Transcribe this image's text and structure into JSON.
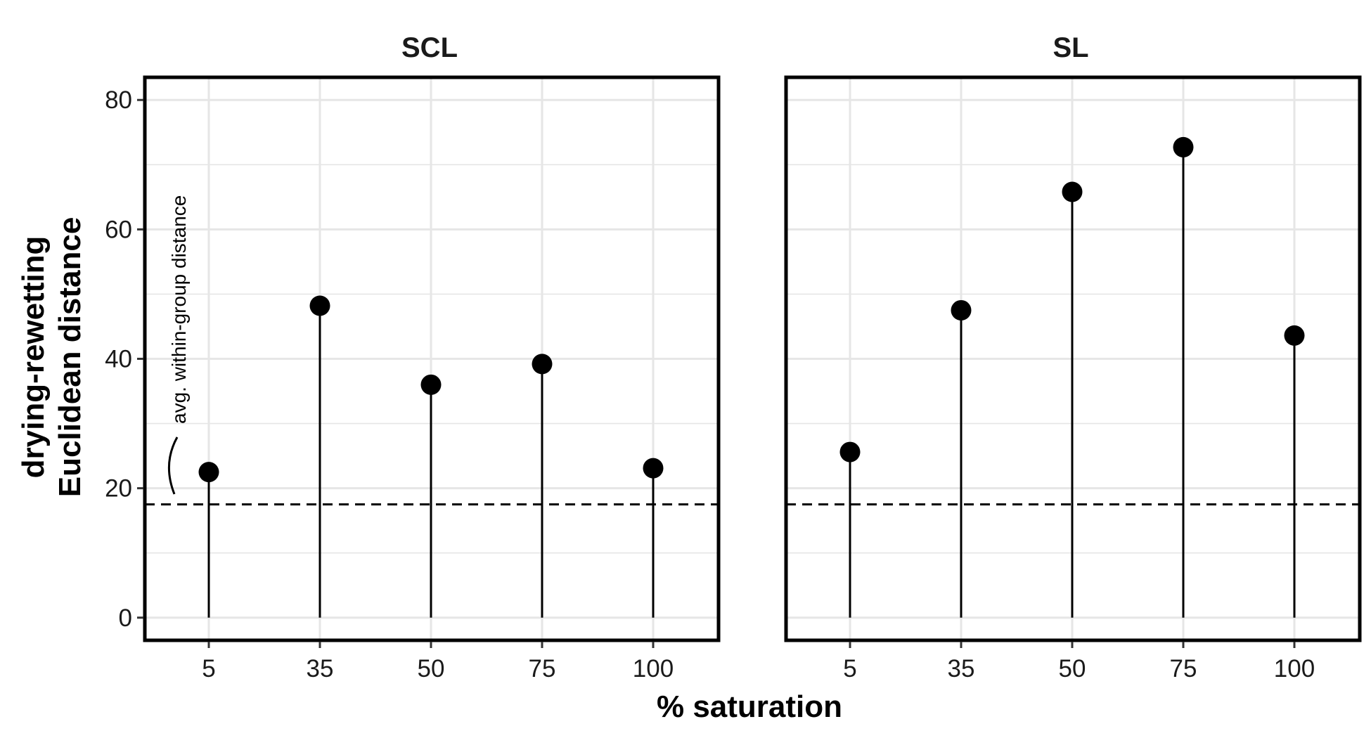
{
  "chart_data": {
    "type": "scatter",
    "style": "lollipop",
    "xlabel": "% saturation",
    "ylabel_lines": [
      "drying-rewetting",
      "Euclidean distance"
    ],
    "categories": [
      "5",
      "35",
      "50",
      "75",
      "100"
    ],
    "ylim": [
      -3.5,
      83.5
    ],
    "yticks": [
      0,
      20,
      40,
      60,
      80
    ],
    "grid": true,
    "reference_line": {
      "value": 17.5,
      "style": "dashed"
    },
    "annotation": {
      "text": "avg. within-group distance",
      "panel": 0
    },
    "panels": [
      {
        "name": "SCL",
        "values": [
          22.5,
          48.2,
          36.0,
          39.2,
          23.1
        ]
      },
      {
        "name": "SL",
        "values": [
          25.6,
          47.5,
          65.8,
          72.7,
          43.6
        ]
      }
    ],
    "colors": {
      "points": "#000000",
      "grid": "#e6e6e6",
      "frame": "#000000"
    }
  }
}
